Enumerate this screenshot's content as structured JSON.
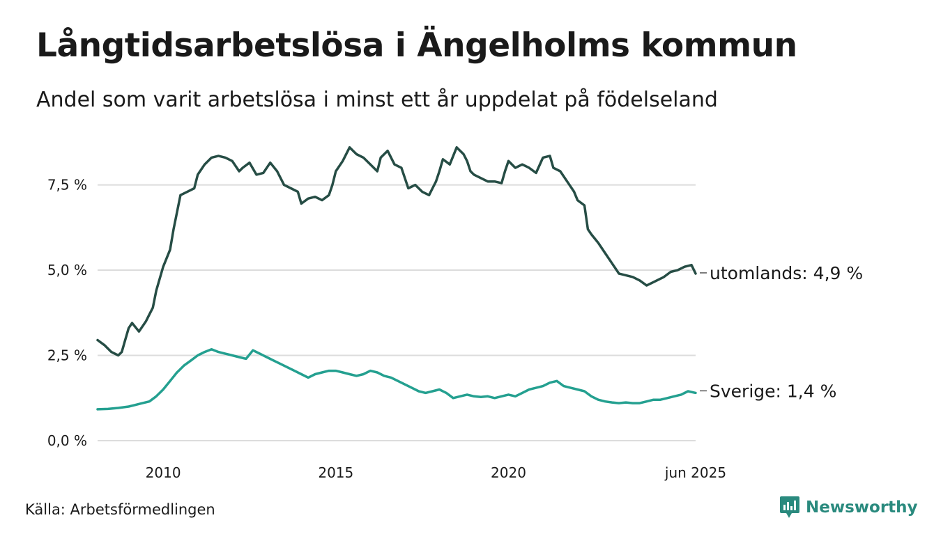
{
  "chart_data": {
    "type": "line",
    "title": "Långtidsarbetslösa i Ängelholms kommun",
    "subtitle": "Andel som varit arbetslösa i minst ett år uppdelat på födelseland",
    "xlabel": "",
    "ylabel": "",
    "x_ticks": [
      {
        "label": "2010",
        "value": 2010
      },
      {
        "label": "2015",
        "value": 2015
      },
      {
        "label": "2020",
        "value": 2020
      },
      {
        "label": "jun 2025",
        "value": 2025.42
      }
    ],
    "y_ticks": [
      {
        "label": "0,0 %",
        "value": 0
      },
      {
        "label": "2,5 %",
        "value": 2.5
      },
      {
        "label": "5,0 %",
        "value": 5
      },
      {
        "label": "7,5 %",
        "value": 7.5
      }
    ],
    "xlim": [
      2008.1,
      2025.42
    ],
    "ylim": [
      0,
      8.9
    ],
    "grid": true,
    "legend": "none",
    "series": [
      {
        "name": "utomlands",
        "end_label": "utomlands: 4,9 %",
        "color": "#264d45",
        "x": [
          2008.1,
          2008.3,
          2008.5,
          2008.7,
          2008.8,
          2008.9,
          2009.0,
          2009.1,
          2009.3,
          2009.5,
          2009.6,
          2009.7,
          2009.8,
          2010.0,
          2010.2,
          2010.3,
          2010.5,
          2010.7,
          2010.9,
          2011.0,
          2011.2,
          2011.4,
          2011.6,
          2011.8,
          2012.0,
          2012.2,
          2012.3,
          2012.5,
          2012.7,
          2012.9,
          2013.1,
          2013.3,
          2013.5,
          2013.7,
          2013.9,
          2014.0,
          2014.2,
          2014.4,
          2014.6,
          2014.8,
          2014.9,
          2015.0,
          2015.2,
          2015.4,
          2015.6,
          2015.8,
          2016.0,
          2016.2,
          2016.3,
          2016.5,
          2016.7,
          2016.9,
          2017.1,
          2017.3,
          2017.5,
          2017.7,
          2017.8,
          2017.9,
          2018.0,
          2018.1,
          2018.3,
          2018.5,
          2018.7,
          2018.8,
          2018.9,
          2019.0,
          2019.2,
          2019.4,
          2019.6,
          2019.8,
          2019.9,
          2020.0,
          2020.2,
          2020.4,
          2020.6,
          2020.8,
          2021.0,
          2021.2,
          2021.3,
          2021.5,
          2021.7,
          2021.9,
          2022.0,
          2022.2,
          2022.3,
          2022.4,
          2022.6,
          2022.8,
          2023.0,
          2023.2,
          2023.4,
          2023.6,
          2023.8,
          2024.0,
          2024.1,
          2024.3,
          2024.5,
          2024.7,
          2024.9,
          2025.1,
          2025.3,
          2025.42
        ],
        "y": [
          2.95,
          2.8,
          2.6,
          2.5,
          2.6,
          2.95,
          3.3,
          3.45,
          3.2,
          3.5,
          3.7,
          3.9,
          4.4,
          5.1,
          5.6,
          6.2,
          7.2,
          7.3,
          7.4,
          7.8,
          8.1,
          8.3,
          8.35,
          8.3,
          8.2,
          7.9,
          8.0,
          8.15,
          7.8,
          7.85,
          8.15,
          7.9,
          7.5,
          7.4,
          7.3,
          6.95,
          7.1,
          7.15,
          7.05,
          7.2,
          7.5,
          7.9,
          8.2,
          8.6,
          8.4,
          8.3,
          8.1,
          7.9,
          8.3,
          8.5,
          8.1,
          8.0,
          7.4,
          7.5,
          7.3,
          7.2,
          7.4,
          7.6,
          7.9,
          8.25,
          8.1,
          8.6,
          8.4,
          8.2,
          7.9,
          7.8,
          7.7,
          7.6,
          7.6,
          7.55,
          7.9,
          8.2,
          8.0,
          8.1,
          8.0,
          7.85,
          8.3,
          8.35,
          8.0,
          7.9,
          7.6,
          7.3,
          7.05,
          6.9,
          6.2,
          6.05,
          5.8,
          5.5,
          5.2,
          4.9,
          4.85,
          4.8,
          4.7,
          4.55,
          4.6,
          4.7,
          4.8,
          4.95,
          5.0,
          5.1,
          5.15,
          4.9
        ]
      },
      {
        "name": "Sverige",
        "end_label": "Sverige: 1,4 %",
        "color": "#24a090",
        "x": [
          2008.1,
          2008.4,
          2008.7,
          2009.0,
          2009.2,
          2009.4,
          2009.6,
          2009.8,
          2010.0,
          2010.2,
          2010.4,
          2010.6,
          2010.8,
          2011.0,
          2011.2,
          2011.4,
          2011.6,
          2011.8,
          2012.0,
          2012.2,
          2012.4,
          2012.6,
          2012.8,
          2013.0,
          2013.2,
          2013.4,
          2013.6,
          2013.8,
          2014.0,
          2014.2,
          2014.4,
          2014.6,
          2014.8,
          2015.0,
          2015.2,
          2015.4,
          2015.6,
          2015.8,
          2016.0,
          2016.2,
          2016.4,
          2016.6,
          2016.8,
          2017.0,
          2017.2,
          2017.4,
          2017.6,
          2017.8,
          2018.0,
          2018.2,
          2018.4,
          2018.6,
          2018.8,
          2019.0,
          2019.2,
          2019.4,
          2019.6,
          2019.8,
          2020.0,
          2020.2,
          2020.4,
          2020.6,
          2020.8,
          2021.0,
          2021.2,
          2021.4,
          2021.6,
          2021.8,
          2022.0,
          2022.2,
          2022.4,
          2022.6,
          2022.8,
          2023.0,
          2023.2,
          2023.4,
          2023.6,
          2023.8,
          2024.0,
          2024.2,
          2024.4,
          2024.6,
          2024.8,
          2025.0,
          2025.2,
          2025.42
        ],
        "y": [
          0.92,
          0.93,
          0.96,
          1.0,
          1.05,
          1.1,
          1.15,
          1.3,
          1.5,
          1.75,
          2.0,
          2.2,
          2.35,
          2.5,
          2.6,
          2.68,
          2.6,
          2.55,
          2.5,
          2.45,
          2.4,
          2.65,
          2.55,
          2.45,
          2.35,
          2.25,
          2.15,
          2.05,
          1.95,
          1.85,
          1.95,
          2.0,
          2.05,
          2.05,
          2.0,
          1.95,
          1.9,
          1.95,
          2.05,
          2.0,
          1.9,
          1.85,
          1.75,
          1.65,
          1.55,
          1.45,
          1.4,
          1.45,
          1.5,
          1.4,
          1.25,
          1.3,
          1.35,
          1.3,
          1.28,
          1.3,
          1.25,
          1.3,
          1.35,
          1.3,
          1.4,
          1.5,
          1.55,
          1.6,
          1.7,
          1.75,
          1.6,
          1.55,
          1.5,
          1.45,
          1.3,
          1.2,
          1.15,
          1.12,
          1.1,
          1.12,
          1.1,
          1.1,
          1.15,
          1.2,
          1.2,
          1.25,
          1.3,
          1.35,
          1.45,
          1.4
        ]
      }
    ]
  },
  "source": "Källa: Arbetsförmedlingen",
  "brand": {
    "name": "Newsworthy",
    "icon": "newsworthy-chart-bubble-icon",
    "color": "#2a8a7e"
  }
}
